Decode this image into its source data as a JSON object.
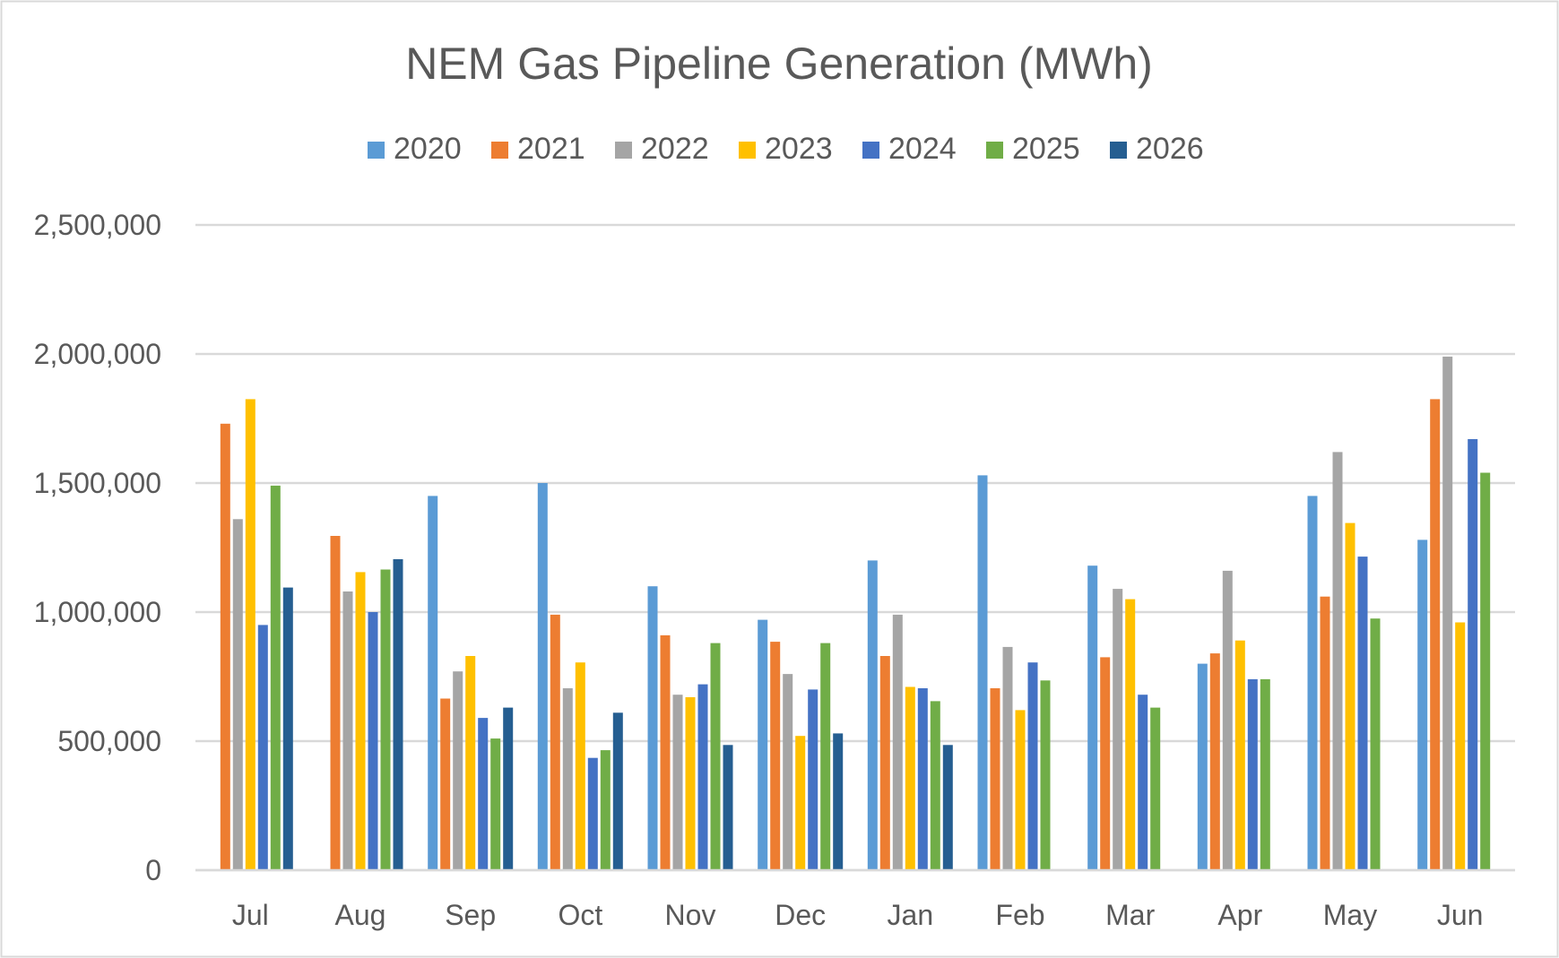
{
  "chart_data": {
    "type": "bar",
    "title": "NEM Gas Pipeline Generation (MWh)",
    "xlabel": "",
    "ylabel": "",
    "ylim": [
      0,
      2500000
    ],
    "yticks": [
      0,
      500000,
      1000000,
      1500000,
      2000000,
      2500000
    ],
    "ytick_labels": [
      "0",
      "500,000",
      "1,000,000",
      "1,500,000",
      "2,000,000",
      "2,500,000"
    ],
    "grid": true,
    "legend_position": "top",
    "categories": [
      "Jul",
      "Aug",
      "Sep",
      "Oct",
      "Nov",
      "Dec",
      "Jan",
      "Feb",
      "Mar",
      "Apr",
      "May",
      "Jun"
    ],
    "series": [
      {
        "name": "2020",
        "color": "#5b9bd5",
        "values": [
          null,
          null,
          1450000,
          1500000,
          1100000,
          970000,
          1200000,
          1530000,
          1180000,
          800000,
          1450000,
          1280000
        ]
      },
      {
        "name": "2021",
        "color": "#ed7d31",
        "values": [
          1730000,
          1295000,
          665000,
          990000,
          910000,
          885000,
          830000,
          705000,
          825000,
          840000,
          1060000,
          1825000
        ]
      },
      {
        "name": "2022",
        "color": "#a5a5a5",
        "values": [
          1360000,
          1080000,
          770000,
          705000,
          680000,
          760000,
          990000,
          865000,
          1090000,
          1160000,
          1620000,
          1990000
        ]
      },
      {
        "name": "2023",
        "color": "#ffc000",
        "values": [
          1825000,
          1155000,
          830000,
          805000,
          670000,
          520000,
          710000,
          620000,
          1050000,
          890000,
          1345000,
          960000
        ]
      },
      {
        "name": "2024",
        "color": "#4472c4",
        "values": [
          950000,
          1000000,
          590000,
          435000,
          720000,
          700000,
          705000,
          805000,
          680000,
          740000,
          1215000,
          1670000
        ]
      },
      {
        "name": "2025",
        "color": "#70ad47",
        "values": [
          1490000,
          1165000,
          510000,
          465000,
          880000,
          880000,
          655000,
          735000,
          630000,
          740000,
          975000,
          1540000
        ]
      },
      {
        "name": "2026",
        "color": "#255e91",
        "values": [
          1095000,
          1205000,
          630000,
          610000,
          485000,
          530000,
          485000,
          null,
          null,
          null,
          null,
          null
        ]
      }
    ]
  }
}
